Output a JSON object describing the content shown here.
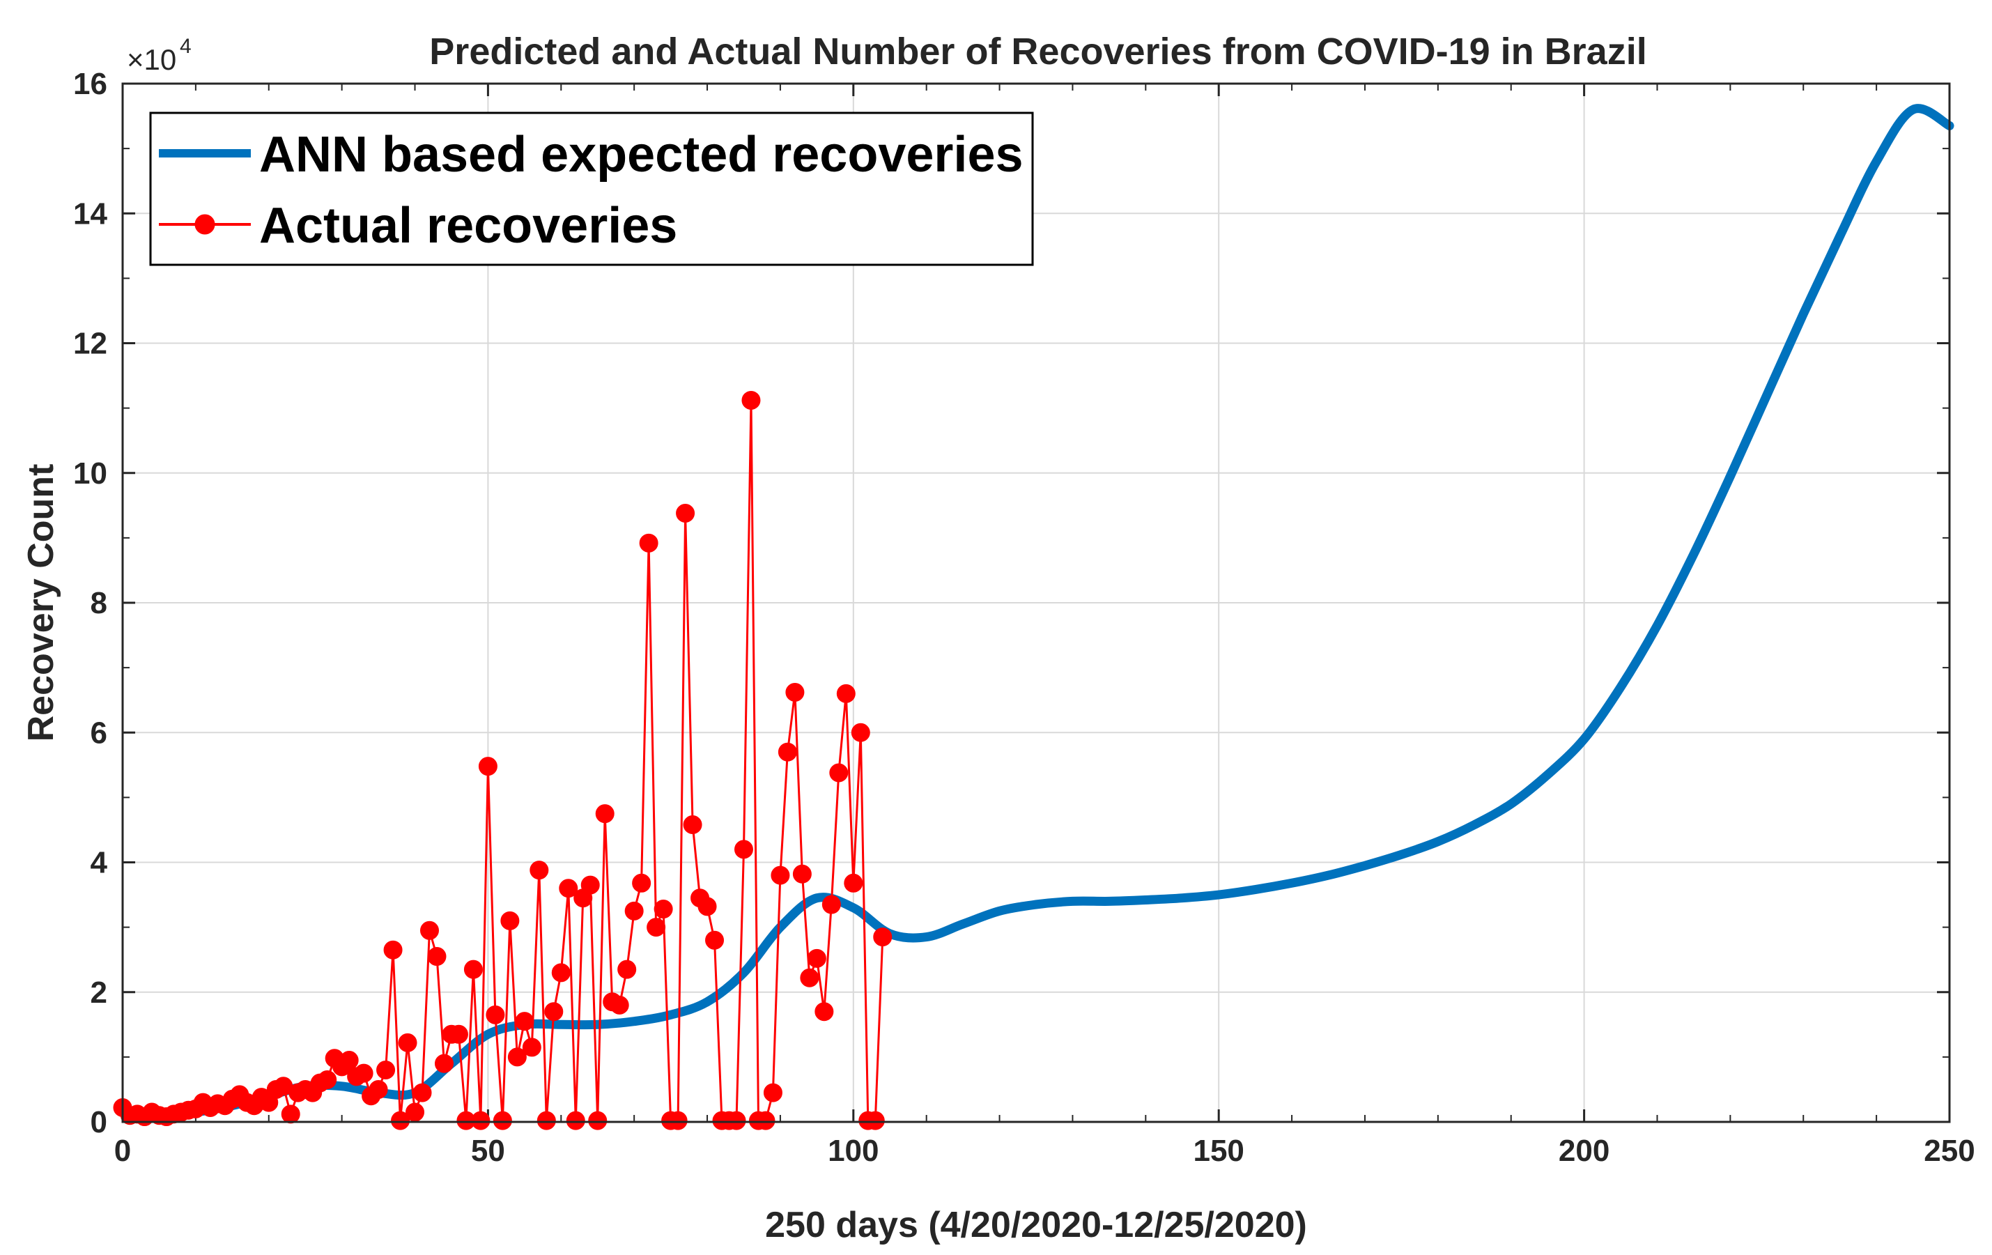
{
  "chart_data": {
    "type": "line",
    "title": "Predicted and Actual Number of Recoveries from COVID-19 in Brazil",
    "xlabel": "250 days (4/20/2020-12/25/2020)",
    "ylabel": "Recovery Count",
    "xlim": [
      0,
      250
    ],
    "ylim": [
      0,
      16
    ],
    "y_multiplier_base": "×10",
    "y_multiplier_exponent": "4",
    "grid": true,
    "x_ticks": [
      0,
      50,
      100,
      150,
      200,
      250
    ],
    "x_tick_labels": [
      "0",
      "50",
      "100",
      "150",
      "200",
      "250"
    ],
    "y_ticks": [
      0,
      2,
      4,
      6,
      8,
      10,
      12,
      14,
      16
    ],
    "y_tick_labels": [
      "0",
      "2",
      "4",
      "6",
      "8",
      "10",
      "12",
      "14",
      "16"
    ],
    "legend_position": "top-left",
    "series": [
      {
        "name": "ANN based expected recoveries",
        "style": "line",
        "color": "#0072BD",
        "x": [
          0,
          5,
          10,
          15,
          20,
          25,
          30,
          35,
          40,
          45,
          50,
          55,
          60,
          65,
          70,
          75,
          80,
          85,
          90,
          95,
          100,
          105,
          110,
          115,
          120,
          125,
          130,
          135,
          140,
          145,
          150,
          155,
          160,
          165,
          170,
          175,
          180,
          185,
          190,
          195,
          200,
          205,
          210,
          215,
          220,
          225,
          230,
          235,
          240,
          245,
          250
        ],
        "y": [
          0.15,
          0.1,
          0.15,
          0.25,
          0.4,
          0.55,
          0.55,
          0.45,
          0.45,
          0.9,
          1.35,
          1.5,
          1.5,
          1.5,
          1.55,
          1.65,
          1.85,
          2.3,
          3.0,
          3.45,
          3.3,
          2.9,
          2.85,
          3.05,
          3.25,
          3.35,
          3.4,
          3.4,
          3.42,
          3.45,
          3.5,
          3.58,
          3.68,
          3.8,
          3.95,
          4.12,
          4.32,
          4.58,
          4.9,
          5.35,
          5.9,
          6.7,
          7.65,
          8.75,
          9.95,
          11.2,
          12.45,
          13.65,
          14.8,
          15.6,
          15.35
        ]
      },
      {
        "name": "Actual recoveries",
        "style": "line-marker",
        "color": "#FF0000",
        "x": [
          0,
          1,
          2,
          3,
          4,
          5,
          6,
          7,
          8,
          9,
          10,
          11,
          12,
          13,
          14,
          15,
          16,
          17,
          18,
          19,
          20,
          21,
          22,
          23,
          24,
          25,
          26,
          27,
          28,
          29,
          30,
          31,
          32,
          33,
          34,
          35,
          36,
          37,
          38,
          39,
          40,
          41,
          42,
          43,
          44,
          45,
          46,
          47,
          48,
          49,
          50,
          51,
          52,
          53,
          54,
          55,
          56,
          57,
          58,
          59,
          60,
          61,
          62,
          63,
          64,
          65,
          66,
          67,
          68,
          69,
          70,
          71,
          72,
          73,
          74,
          75,
          76,
          77,
          78,
          79,
          80,
          81,
          82,
          83,
          84,
          85,
          86,
          87,
          88,
          89,
          90,
          91,
          92,
          93,
          94,
          95,
          96,
          97,
          98,
          99,
          100,
          101,
          102,
          103,
          104
        ],
        "y": [
          0.22,
          0.1,
          0.12,
          0.08,
          0.15,
          0.1,
          0.08,
          0.12,
          0.15,
          0.18,
          0.2,
          0.3,
          0.22,
          0.28,
          0.25,
          0.35,
          0.42,
          0.3,
          0.25,
          0.38,
          0.3,
          0.5,
          0.55,
          0.12,
          0.45,
          0.5,
          0.45,
          0.6,
          0.65,
          0.98,
          0.85,
          0.95,
          0.7,
          0.75,
          0.4,
          0.5,
          0.8,
          2.65,
          0.02,
          1.22,
          0.15,
          0.45,
          2.95,
          2.55,
          0.9,
          1.35,
          1.35,
          0.02,
          2.35,
          0.02,
          5.48,
          1.65,
          0.02,
          3.1,
          1.0,
          1.55,
          1.15,
          3.88,
          0.02,
          1.7,
          2.3,
          3.6,
          0.02,
          3.45,
          3.65,
          0.02,
          4.75,
          1.85,
          1.8,
          2.35,
          3.25,
          3.68,
          8.92,
          3.0,
          3.28,
          0.02,
          0.02,
          9.38,
          4.58,
          3.45,
          3.32,
          2.8,
          0.02,
          0.02,
          0.02,
          4.2,
          11.12,
          0.02,
          0.02,
          0.45,
          3.8,
          5.7,
          6.62,
          3.82,
          2.22,
          2.52,
          1.7,
          3.35,
          5.38,
          6.6,
          3.68,
          6.0,
          0.02,
          0.02,
          2.85
        ]
      }
    ]
  }
}
